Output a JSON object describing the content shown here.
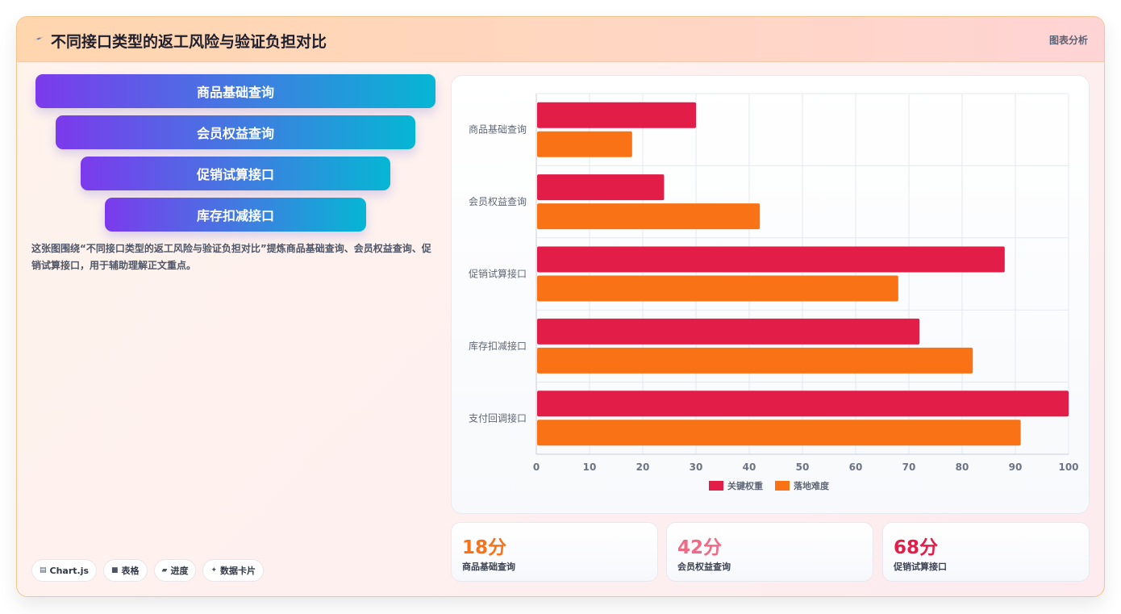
{
  "header": {
    "title": "不同接口类型的返工风险与验证负担对比",
    "right_label": "图表分析",
    "icon": "sparkle-icon"
  },
  "funnel": {
    "items": [
      "商品基础查询",
      "会员权益查询",
      "促销试算接口",
      "库存扣减接口"
    ]
  },
  "description": "这张图围绕“不同接口类型的返工风险与验证负担对比”提炼商品基础查询、会员权益查询、促销试算接口，用于辅助理解正文重点。",
  "tags": [
    {
      "icon": "card-icon",
      "label": "Chart.js"
    },
    {
      "icon": "table-icon",
      "label": "表格"
    },
    {
      "icon": "progress-icon",
      "label": "进度"
    },
    {
      "icon": "sparkle-icon",
      "label": "数据卡片"
    }
  ],
  "chart_data": {
    "type": "bar",
    "orientation": "horizontal",
    "categories": [
      "商品基础查询",
      "会员权益查询",
      "促销试算接口",
      "库存扣减接口",
      "支付回调接口"
    ],
    "series": [
      {
        "name": "关键权重",
        "color": "#e11d48",
        "values": [
          30,
          24,
          88,
          72,
          100
        ]
      },
      {
        "name": "落地难度",
        "color": "#f97316",
        "values": [
          18,
          42,
          68,
          82,
          91
        ]
      }
    ],
    "xlim": [
      0,
      100
    ],
    "xticks": [
      0,
      10,
      20,
      30,
      40,
      50,
      60,
      70,
      80,
      90,
      100
    ],
    "grid": true,
    "legend_position": "bottom"
  },
  "stats": [
    {
      "value": "18分",
      "label": "商品基础查询",
      "color": "#f97316"
    },
    {
      "value": "42分",
      "label": "会员权益查询",
      "color": "#f06a85"
    },
    {
      "value": "68分",
      "label": "促销试算接口",
      "color": "#e11d48"
    }
  ]
}
